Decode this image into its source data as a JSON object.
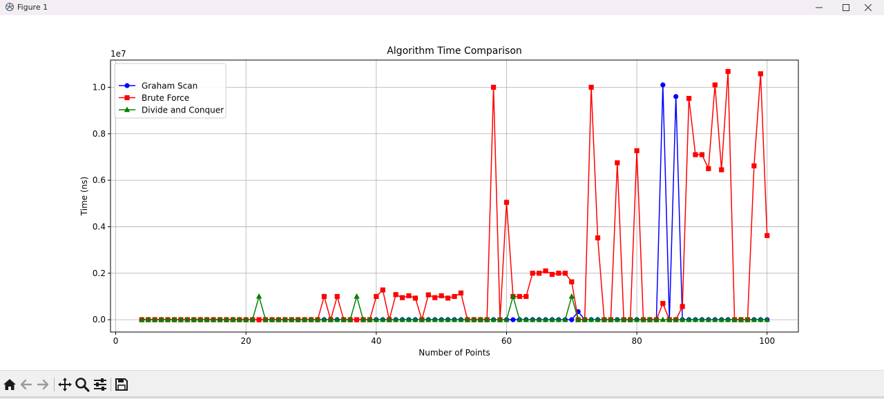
{
  "window": {
    "title": "Figure 1",
    "minimize_label": "—",
    "maximize_label": "☐",
    "close_label": "✕"
  },
  "toolbar": {
    "buttons": [
      "home-icon",
      "back-icon",
      "forward-icon",
      "pan-icon",
      "zoom-icon",
      "configure-subplots-icon",
      "save-icon"
    ]
  },
  "colors": {
    "graham": "#0000ff",
    "brute": "#ff0000",
    "divide": "#008000",
    "grid": "#b0b0b0"
  },
  "chart_data": {
    "type": "line",
    "title": "Algorithm Time Comparison",
    "xlabel": "Number of Points",
    "ylabel": "Time (ns)",
    "y_offset_label": "1e7",
    "xlim": [
      -0.8,
      104.8
    ],
    "ylim": [
      -0.053,
      1.117
    ],
    "xticks": [
      0,
      20,
      40,
      60,
      80,
      100
    ],
    "xtick_labels": [
      "0",
      "20",
      "40",
      "60",
      "80",
      "100"
    ],
    "yticks": [
      0.0,
      0.2,
      0.4,
      0.6,
      0.8,
      1.0
    ],
    "ytick_labels": [
      "0.0",
      "0.2",
      "0.4",
      "0.6",
      "0.8",
      "1.0"
    ],
    "grid": true,
    "legend_position": "upper-left",
    "x": [
      4,
      5,
      6,
      7,
      8,
      9,
      10,
      11,
      12,
      13,
      14,
      15,
      16,
      17,
      18,
      19,
      20,
      21,
      22,
      23,
      24,
      25,
      26,
      27,
      28,
      29,
      30,
      31,
      32,
      33,
      34,
      35,
      36,
      37,
      38,
      39,
      40,
      41,
      42,
      43,
      44,
      45,
      46,
      47,
      48,
      49,
      50,
      51,
      52,
      53,
      54,
      55,
      56,
      57,
      58,
      59,
      60,
      61,
      62,
      63,
      64,
      65,
      66,
      67,
      68,
      69,
      70,
      71,
      72,
      73,
      74,
      75,
      76,
      77,
      78,
      79,
      80,
      81,
      82,
      83,
      84,
      85,
      86,
      87,
      88,
      89,
      90,
      91,
      92,
      93,
      94,
      95,
      96,
      97,
      98,
      99,
      100
    ],
    "series": [
      {
        "name": "Graham Scan",
        "marker": "circle",
        "values": [
          0,
          0,
          0,
          0,
          0,
          0,
          0,
          0,
          0,
          0,
          0,
          0,
          0,
          0,
          0,
          0,
          0,
          0,
          0,
          0,
          0,
          0,
          0,
          0,
          0,
          0,
          0,
          0,
          0,
          0,
          0,
          0,
          0,
          0,
          0,
          0,
          0,
          0,
          0,
          0,
          0,
          0,
          0,
          0,
          0,
          0,
          0,
          0,
          0,
          0,
          0,
          0,
          0,
          0,
          0,
          0,
          0,
          0,
          0,
          0,
          0,
          0,
          0,
          0,
          0,
          0,
          0,
          0.035,
          0,
          0,
          0,
          0,
          0,
          0,
          0,
          0,
          0,
          0,
          0,
          0,
          1.01,
          0,
          0.96,
          0,
          0,
          0,
          0,
          0,
          0,
          0,
          0,
          0,
          0,
          0,
          0,
          0,
          0
        ]
      },
      {
        "name": "Brute Force",
        "marker": "square",
        "values": [
          0,
          0,
          0,
          0,
          0,
          0,
          0,
          0,
          0,
          0,
          0,
          0,
          0,
          0,
          0,
          0,
          0,
          0,
          0,
          0,
          0,
          0,
          0,
          0,
          0,
          0,
          0,
          0,
          0.1,
          0,
          0.1,
          0,
          0,
          0,
          0,
          0,
          0.1,
          0.128,
          0,
          0.108,
          0.095,
          0.103,
          0.093,
          0,
          0.107,
          0.095,
          0.103,
          0.093,
          0.1,
          0.115,
          0,
          0,
          0,
          0,
          1.0,
          0,
          0.505,
          0.1,
          0.1,
          0.1,
          0.2,
          0.2,
          0.21,
          0.195,
          0.2,
          0.2,
          0.163,
          0,
          0,
          1.0,
          0.352,
          0,
          0,
          0.675,
          0,
          0,
          0.727,
          0,
          0,
          0,
          0.07,
          0,
          0,
          0.057,
          0.952,
          0.71,
          0.71,
          0.65,
          1.01,
          0.645,
          1.068,
          0,
          0,
          0,
          0.662,
          1.058,
          0.362
        ]
      },
      {
        "name": "Divide and Conquer",
        "marker": "triangle",
        "values": [
          0,
          0,
          0,
          0,
          0,
          0,
          0,
          0,
          0,
          0,
          0,
          0,
          0,
          0,
          0,
          0,
          0,
          0,
          0.1,
          0,
          0,
          0,
          0,
          0,
          0,
          0,
          0,
          0,
          0,
          0,
          0,
          0,
          0,
          0.1,
          0,
          0,
          0,
          0,
          0,
          0,
          0,
          0,
          0,
          0,
          0,
          0,
          0,
          0,
          0,
          0,
          0,
          0,
          0,
          0,
          0,
          0,
          0,
          0.1,
          0,
          0,
          0,
          0,
          0,
          0,
          0,
          0,
          0.1,
          0,
          0,
          0,
          0,
          0,
          0,
          0,
          0,
          0,
          0,
          0,
          0,
          0,
          0,
          0,
          0,
          0,
          0,
          0,
          0,
          0,
          0,
          0,
          0,
          0,
          0,
          0,
          0,
          0,
          0
        ]
      }
    ]
  }
}
